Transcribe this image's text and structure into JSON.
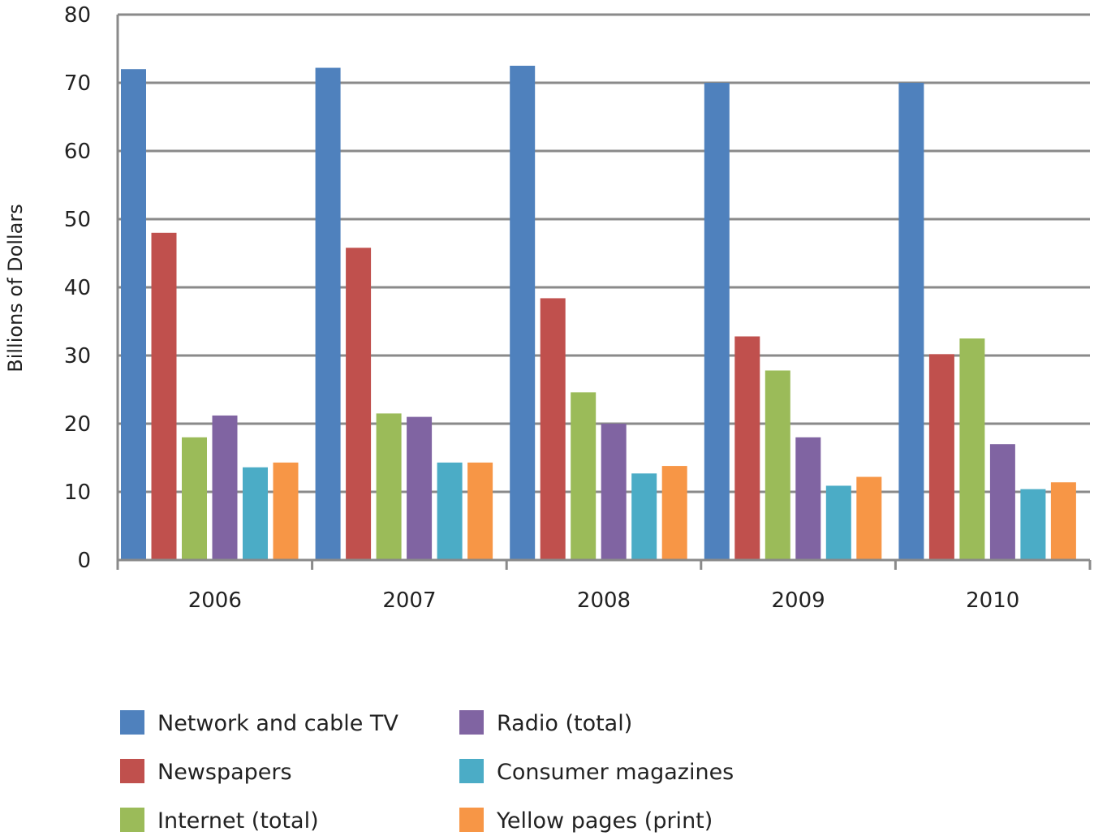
{
  "chart_data": {
    "type": "bar",
    "title": "",
    "xlabel": "",
    "ylabel": "Billions of Dollars",
    "ylim": [
      0,
      80
    ],
    "yticks": [
      0,
      10,
      20,
      30,
      40,
      50,
      60,
      70,
      80
    ],
    "grid": true,
    "legend_position": "bottom",
    "categories": [
      "2006",
      "2007",
      "2008",
      "2009",
      "2010"
    ],
    "series": [
      {
        "name": "Network and cable TV",
        "color": "#4F81BD",
        "values": [
          72,
          72.2,
          72.5,
          70,
          70
        ]
      },
      {
        "name": "Newspapers",
        "color": "#C0504D",
        "values": [
          48,
          45.8,
          38.4,
          32.8,
          30.2
        ]
      },
      {
        "name": "Internet (total)",
        "color": "#9BBB59",
        "values": [
          18,
          21.5,
          24.6,
          27.8,
          32.5
        ]
      },
      {
        "name": "Radio (total)",
        "color": "#8064A2",
        "values": [
          21.2,
          21,
          20,
          18,
          17
        ]
      },
      {
        "name": "Consumer magazines",
        "color": "#4BACC6",
        "values": [
          13.6,
          14.3,
          12.7,
          10.9,
          10.4
        ]
      },
      {
        "name": "Yellow pages (print)",
        "color": "#F79646",
        "values": [
          14.3,
          14.3,
          13.8,
          12.2,
          11.4
        ]
      }
    ]
  }
}
